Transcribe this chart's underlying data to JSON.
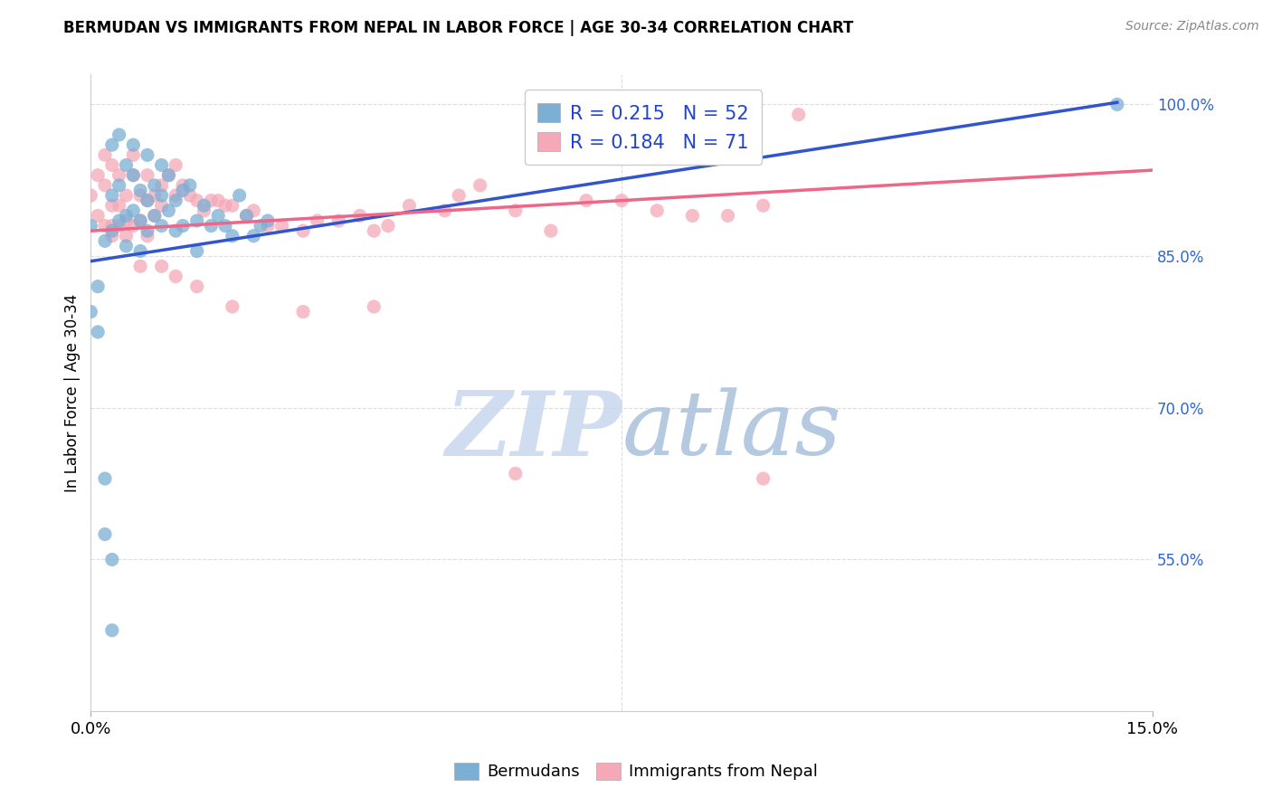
{
  "title": "BERMUDAN VS IMMIGRANTS FROM NEPAL IN LABOR FORCE | AGE 30-34 CORRELATION CHART",
  "source": "Source: ZipAtlas.com",
  "ylabel": "In Labor Force | Age 30-34",
  "xlim": [
    0.0,
    0.15
  ],
  "ylim": [
    0.4,
    1.03
  ],
  "xtick_positions": [
    0.0,
    0.15
  ],
  "xtick_labels": [
    "0.0%",
    "15.0%"
  ],
  "right_ytick_positions": [
    1.0,
    0.85,
    0.7,
    0.55
  ],
  "right_ytick_labels": [
    "100.0%",
    "85.0%",
    "70.0%",
    "55.0%"
  ],
  "blue_R": 0.215,
  "blue_N": 52,
  "pink_R": 0.184,
  "pink_N": 71,
  "blue_color": "#7BAFD4",
  "pink_color": "#F4A8B8",
  "blue_line_color": "#3355CC",
  "pink_line_color": "#EE6688",
  "blue_scatter_x": [
    0.0,
    0.0,
    0.001,
    0.001,
    0.002,
    0.002,
    0.002,
    0.003,
    0.003,
    0.003,
    0.003,
    0.003,
    0.004,
    0.004,
    0.004,
    0.005,
    0.005,
    0.005,
    0.006,
    0.006,
    0.006,
    0.007,
    0.007,
    0.007,
    0.008,
    0.008,
    0.008,
    0.009,
    0.009,
    0.01,
    0.01,
    0.01,
    0.011,
    0.011,
    0.012,
    0.012,
    0.013,
    0.013,
    0.014,
    0.015,
    0.015,
    0.016,
    0.017,
    0.018,
    0.019,
    0.02,
    0.021,
    0.022,
    0.023,
    0.024,
    0.025,
    0.145
  ],
  "blue_scatter_y": [
    0.88,
    0.795,
    0.82,
    0.775,
    0.865,
    0.63,
    0.575,
    0.96,
    0.91,
    0.875,
    0.55,
    0.48,
    0.97,
    0.92,
    0.885,
    0.94,
    0.89,
    0.86,
    0.96,
    0.93,
    0.895,
    0.915,
    0.885,
    0.855,
    0.95,
    0.905,
    0.875,
    0.92,
    0.89,
    0.94,
    0.91,
    0.88,
    0.93,
    0.895,
    0.905,
    0.875,
    0.915,
    0.88,
    0.92,
    0.885,
    0.855,
    0.9,
    0.88,
    0.89,
    0.88,
    0.87,
    0.91,
    0.89,
    0.87,
    0.88,
    0.885,
    1.0
  ],
  "pink_scatter_x": [
    0.0,
    0.001,
    0.001,
    0.002,
    0.002,
    0.003,
    0.003,
    0.003,
    0.004,
    0.004,
    0.005,
    0.005,
    0.006,
    0.006,
    0.007,
    0.007,
    0.008,
    0.008,
    0.009,
    0.009,
    0.01,
    0.01,
    0.011,
    0.012,
    0.012,
    0.013,
    0.014,
    0.015,
    0.016,
    0.017,
    0.018,
    0.019,
    0.02,
    0.022,
    0.023,
    0.025,
    0.027,
    0.03,
    0.032,
    0.035,
    0.038,
    0.04,
    0.042,
    0.045,
    0.05,
    0.052,
    0.055,
    0.06,
    0.065,
    0.07,
    0.075,
    0.08,
    0.085,
    0.09,
    0.095,
    0.1,
    0.002,
    0.003,
    0.004,
    0.005,
    0.006,
    0.007,
    0.008,
    0.01,
    0.012,
    0.015,
    0.02,
    0.03,
    0.04,
    0.06,
    0.095
  ],
  "pink_scatter_y": [
    0.91,
    0.93,
    0.89,
    0.95,
    0.92,
    0.88,
    0.94,
    0.9,
    0.93,
    0.9,
    0.91,
    0.885,
    0.95,
    0.93,
    0.91,
    0.885,
    0.93,
    0.905,
    0.91,
    0.89,
    0.92,
    0.9,
    0.93,
    0.94,
    0.91,
    0.92,
    0.91,
    0.905,
    0.895,
    0.905,
    0.905,
    0.9,
    0.9,
    0.89,
    0.895,
    0.88,
    0.88,
    0.875,
    0.885,
    0.885,
    0.89,
    0.875,
    0.88,
    0.9,
    0.895,
    0.91,
    0.92,
    0.895,
    0.875,
    0.905,
    0.905,
    0.895,
    0.89,
    0.89,
    0.9,
    0.99,
    0.88,
    0.87,
    0.88,
    0.87,
    0.88,
    0.84,
    0.87,
    0.84,
    0.83,
    0.82,
    0.8,
    0.795,
    0.8,
    0.635,
    0.63
  ],
  "watermark_zip": "ZIP",
  "watermark_atlas": "atlas",
  "background_color": "#FFFFFF",
  "grid_color": "#DDDDDD"
}
